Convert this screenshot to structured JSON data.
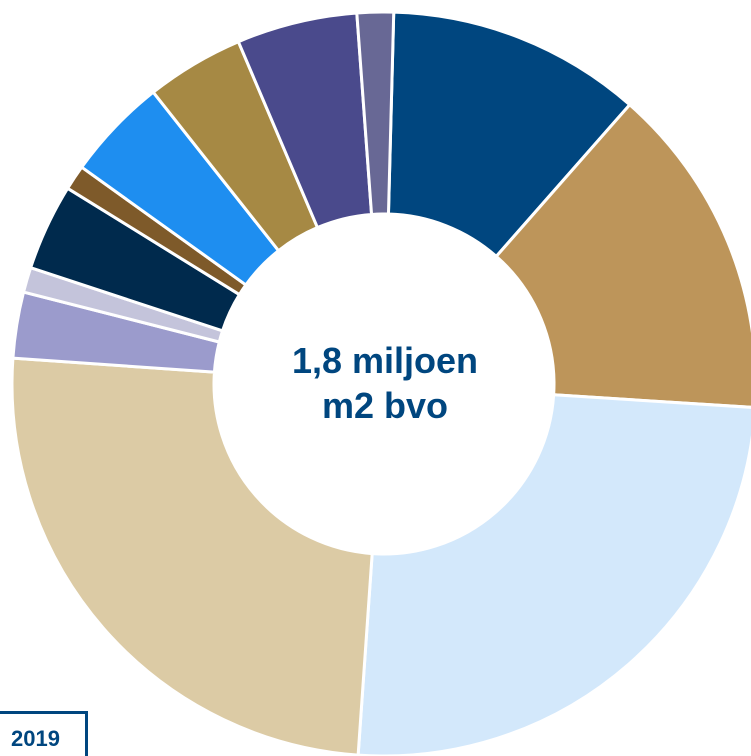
{
  "chart_data": {
    "type": "pie",
    "subtype": "donut",
    "center_text": [
      "1,8 miljoen",
      "m2 bvo"
    ],
    "badge": "2019",
    "slice_border_color": "#ffffff",
    "slices": [
      {
        "value": 11.2,
        "color": "#00467f"
      },
      {
        "value": 14.7,
        "color": "#bd955a"
      },
      {
        "value": 25.4,
        "color": "#d3e8fb"
      },
      {
        "value": 25.3,
        "color": "#dccba5"
      },
      {
        "value": 2.9,
        "color": "#9b9bcc"
      },
      {
        "value": 1.1,
        "color": "#c4c4db"
      },
      {
        "value": 3.8,
        "color": "#002a4d"
      },
      {
        "value": 1.1,
        "color": "#7e5a2a"
      },
      {
        "value": 4.5,
        "color": "#1e8ef0"
      },
      {
        "value": 4.3,
        "color": "#a68944"
      },
      {
        "value": 5.3,
        "color": "#4a4a8c"
      },
      {
        "value": 1.6,
        "color": "#686895"
      }
    ]
  }
}
